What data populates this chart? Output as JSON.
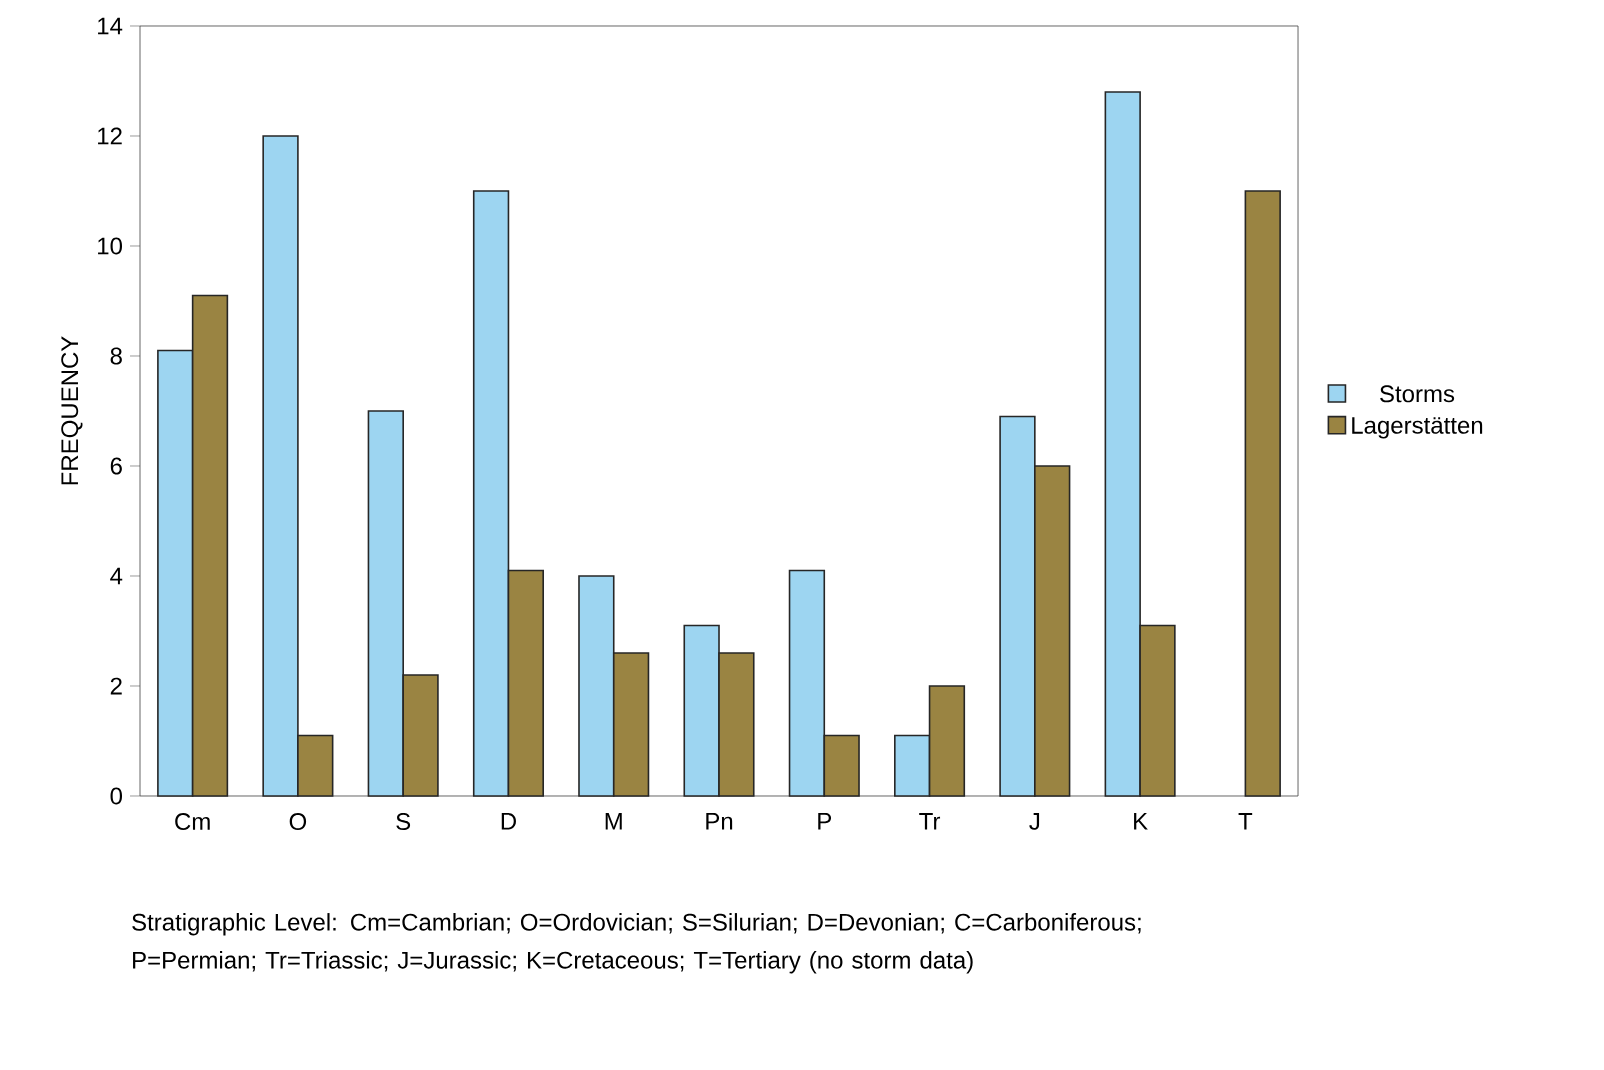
{
  "chart_data": {
    "type": "bar",
    "ylabel": "FREQUENCY",
    "categories": [
      "Cm",
      "O",
      "S",
      "D",
      "M",
      "Pn",
      "P",
      "Tr",
      "J",
      "K",
      "T"
    ],
    "series": [
      {
        "name": "Storms",
        "color": "#9dd5f1",
        "values": [
          8.1,
          12.0,
          7.0,
          11.0,
          4.0,
          3.1,
          4.1,
          1.1,
          6.9,
          12.8,
          null
        ]
      },
      {
        "name": "Lagerstätten",
        "color": "#9a8442",
        "values": [
          9.1,
          1.1,
          2.2,
          4.1,
          2.6,
          2.6,
          1.1,
          2.0,
          6.0,
          3.1,
          11.0
        ]
      }
    ],
    "ylim": [
      0,
      14
    ],
    "yticks": [
      0,
      2,
      4,
      6,
      8,
      10,
      12,
      14
    ],
    "legend": "right",
    "annotations": [
      "Stratigraphic Level: Cm=Cambrian; O=Ordovician; S=Silurian; D=Devonian; C=Carboniferous; P=Permian; Tr=Triassic; J=Jurassic; K=Cretaceous; T=Tertiary (no storm data)"
    ]
  }
}
